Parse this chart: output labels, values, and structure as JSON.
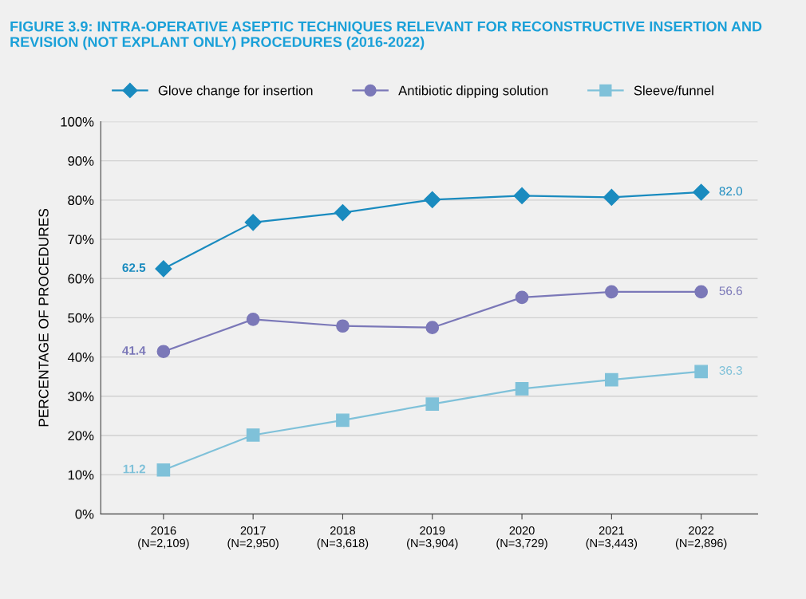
{
  "chart_data": {
    "type": "line",
    "title": "FIGURE 3.9: INTRA-OPERATIVE ASEPTIC TECHNIQUES RELEVANT FOR RECONSTRUCTIVE INSERTION AND REVISION (NOT EXPLANT ONLY) PROCEDURES (2016-2022)",
    "ylabel": "PERCENTAGE OF PROCEDURES",
    "categories": [
      "2016\n(N=2,109)",
      "2017\n(N=2,950)",
      "2018\n(N=3,618)",
      "2019\n(N=3,904)",
      "2020\n(N=3,729)",
      "2021\n(N=3,443)",
      "2022\n(N=2,896)"
    ],
    "series": [
      {
        "name": "Glove change for insertion",
        "color": "#1a8bbf",
        "marker": "diamond",
        "values": [
          62.5,
          74.3,
          76.8,
          80.1,
          81.1,
          80.7,
          82.0
        ],
        "value_labels": [
          "62.5",
          null,
          null,
          null,
          null,
          null,
          "82.0"
        ]
      },
      {
        "name": "Antibiotic dipping solution",
        "color": "#7b78b8",
        "marker": "circle",
        "values": [
          41.4,
          49.6,
          47.9,
          47.5,
          55.2,
          56.6,
          56.6
        ],
        "value_labels": [
          "41.4",
          null,
          null,
          null,
          null,
          null,
          "56.6"
        ]
      },
      {
        "name": "Sleeve/funnel",
        "color": "#7fc1d9",
        "marker": "square",
        "values": [
          11.2,
          20.1,
          23.9,
          28.0,
          31.9,
          34.2,
          36.3
        ],
        "value_labels": [
          "11.2",
          null,
          null,
          null,
          null,
          null,
          "36.3"
        ]
      }
    ],
    "ylim": [
      0,
      100
    ],
    "yticks": [
      {
        "value": 0,
        "label": "0%"
      },
      {
        "value": 10,
        "label": "10%"
      },
      {
        "value": 20,
        "label": "20%"
      },
      {
        "value": 30,
        "label": "30%"
      },
      {
        "value": 40,
        "label": "40%"
      },
      {
        "value": 50,
        "label": "50%"
      },
      {
        "value": 60,
        "label": "60%"
      },
      {
        "value": 70,
        "label": "70%"
      },
      {
        "value": 80,
        "label": "80%"
      },
      {
        "value": 90,
        "label": "90%"
      },
      {
        "value": 100,
        "label": "100%"
      }
    ],
    "grid": "y",
    "legend": "top",
    "line_style": "solid"
  }
}
